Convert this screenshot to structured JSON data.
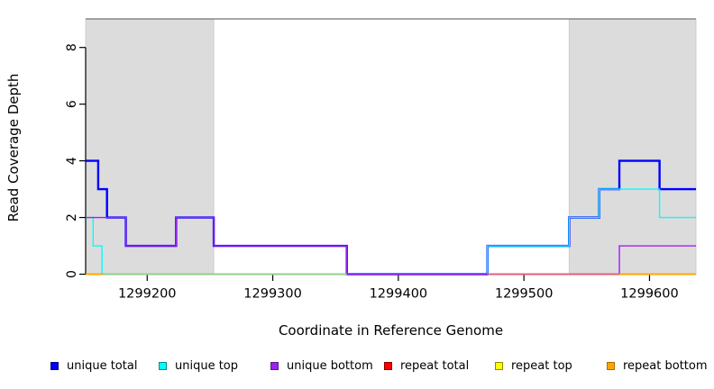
{
  "chart_data": {
    "type": "line",
    "subtype": "step-coverage",
    "title": "",
    "xlabel": "Coordinate in Reference Genome",
    "ylabel": "Read Coverage Depth",
    "xlim": [
      1299151,
      1299637
    ],
    "ylim": [
      0,
      9
    ],
    "x_ticks": [
      1299200,
      1299300,
      1299400,
      1299500,
      1299600
    ],
    "y_ticks": [
      0,
      2,
      4,
      6,
      8
    ],
    "grid": false,
    "step": "after",
    "axis_color": "#000000",
    "top_border_color": "#8a8a8a",
    "shaded_regions": [
      {
        "x0": 1299151,
        "x1": 1299253,
        "color": "#dcdcdc",
        "border": "#c6c6c6"
      },
      {
        "x0": 1299536,
        "x1": 1299637,
        "color": "#dcdcdc",
        "border": "#c6c6c6"
      }
    ],
    "series": [
      {
        "name": "unique total",
        "color": "#0000ff",
        "width": 2.4,
        "draw_order": 4,
        "points": [
          [
            1299151,
            4
          ],
          [
            1299161,
            3
          ],
          [
            1299168,
            2
          ],
          [
            1299183,
            1
          ],
          [
            1299223,
            2
          ],
          [
            1299253,
            1
          ],
          [
            1299359,
            0
          ],
          [
            1299471,
            1
          ],
          [
            1299536,
            2
          ],
          [
            1299560,
            3
          ],
          [
            1299576,
            4
          ],
          [
            1299608,
            3
          ],
          [
            1299637,
            3
          ]
        ]
      },
      {
        "name": "unique top",
        "color": "#00ffff",
        "width": 1.4,
        "draw_order": 5,
        "points": [
          [
            1299151,
            2
          ],
          [
            1299157,
            1
          ],
          [
            1299164,
            0
          ],
          [
            1299471,
            1
          ],
          [
            1299536,
            2
          ],
          [
            1299560,
            3
          ],
          [
            1299608,
            2
          ],
          [
            1299637,
            2
          ]
        ]
      },
      {
        "name": "unique bottom",
        "color": "#a020f0",
        "width": 1.4,
        "draw_order": 6,
        "points": [
          [
            1299151,
            2
          ],
          [
            1299183,
            1
          ],
          [
            1299223,
            2
          ],
          [
            1299253,
            1
          ],
          [
            1299359,
            0
          ],
          [
            1299576,
            1
          ],
          [
            1299637,
            1
          ]
        ]
      },
      {
        "name": "repeat total",
        "color": "#ff0000",
        "width": 1.4,
        "draw_order": 1,
        "points": [
          [
            1299151,
            0
          ],
          [
            1299637,
            0
          ]
        ]
      },
      {
        "name": "repeat top",
        "color": "#ffff00",
        "width": 1.4,
        "draw_order": 2,
        "points": [
          [
            1299151,
            0
          ],
          [
            1299637,
            0
          ]
        ]
      },
      {
        "name": "repeat bottom",
        "color": "#ffa500",
        "width": 1.4,
        "draw_order": 3,
        "points": [
          [
            1299151,
            0
          ],
          [
            1299637,
            0
          ]
        ]
      }
    ],
    "zero_line_overlays": [
      {
        "x0": 1299151,
        "x1": 1299165,
        "color": "#ffa500"
      },
      {
        "x0": 1299165,
        "x1": 1299359,
        "color": "#90ce90"
      },
      {
        "x0": 1299471,
        "x1": 1299576,
        "color": "#e06078"
      },
      {
        "x0": 1299576,
        "x1": 1299637,
        "color": "#ffa500"
      }
    ],
    "legend_position": "bottom",
    "legend": [
      {
        "label": "unique total",
        "color": "#0000ff",
        "border": "#000080"
      },
      {
        "label": "unique top",
        "color": "#00ffff",
        "border": "#008b8b"
      },
      {
        "label": "unique bottom",
        "color": "#a020f0",
        "border": "#551a8b"
      },
      {
        "label": "repeat total",
        "color": "#ff0000",
        "border": "#8b0000"
      },
      {
        "label": "repeat top",
        "color": "#ffff00",
        "border": "#8b8b00"
      },
      {
        "label": "repeat bottom",
        "color": "#ffa500",
        "border": "#b06a00"
      }
    ]
  }
}
